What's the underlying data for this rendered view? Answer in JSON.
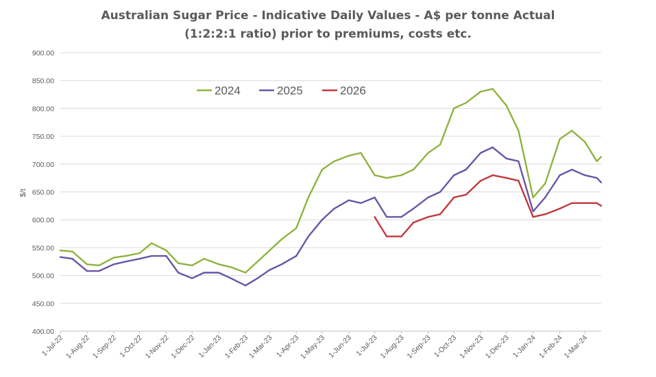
{
  "chart_data": {
    "type": "line",
    "title": "Australian Sugar Price - Indicative Daily Values - A$ per tonne Actual",
    "subtitle": "(1:2:2:1 ratio) prior to premiums, costs etc.",
    "xlabel": "",
    "ylabel": "$/t",
    "ylim": [
      400,
      900
    ],
    "yticks": [
      "400.00",
      "450.00",
      "500.00",
      "550.00",
      "600.00",
      "650.00",
      "700.00",
      "750.00",
      "800.00",
      "850.00",
      "900.00"
    ],
    "xticks": [
      "1-Jul-22",
      "1-Aug-22",
      "1-Sep-22",
      "1-Oct-22",
      "1-Nov-22",
      "1-Dec-22",
      "1-Jan-23",
      "1-Feb-23",
      "1-Mar-23",
      "1-Apr-23",
      "1-May-23",
      "1-Jun-23",
      "1-Jul-23",
      "1-Aug-23",
      "1-Sep-23",
      "1-Oct-23",
      "1-Nov-23",
      "1-Dec-23",
      "1-Jan-24",
      "1-Feb-24",
      "1-Mar-24"
    ],
    "x": [
      "1-Jul-22",
      "15-Jul-22",
      "1-Aug-22",
      "15-Aug-22",
      "1-Sep-22",
      "15-Sep-22",
      "1-Oct-22",
      "15-Oct-22",
      "1-Nov-22",
      "15-Nov-22",
      "1-Dec-22",
      "15-Dec-22",
      "1-Jan-23",
      "15-Jan-23",
      "1-Feb-23",
      "15-Feb-23",
      "1-Mar-23",
      "15-Mar-23",
      "1-Apr-23",
      "15-Apr-23",
      "1-May-23",
      "15-May-23",
      "1-Jun-23",
      "15-Jun-23",
      "1-Jul-23",
      "15-Jul-23",
      "1-Aug-23",
      "15-Aug-23",
      "1-Sep-23",
      "15-Sep-23",
      "1-Oct-23",
      "15-Oct-23",
      "1-Nov-23",
      "15-Nov-23",
      "1-Dec-23",
      "15-Dec-23",
      "1-Jan-24",
      "15-Jan-24",
      "1-Feb-24",
      "15-Feb-24",
      "1-Mar-24",
      "15-Mar-24",
      "20-Mar-24"
    ],
    "series": [
      {
        "name": "2024",
        "color": "#8db33f",
        "values": [
          545,
          543,
          520,
          518,
          532,
          535,
          540,
          558,
          545,
          522,
          518,
          530,
          520,
          515,
          505,
          525,
          545,
          565,
          585,
          640,
          690,
          705,
          715,
          720,
          680,
          675,
          680,
          690,
          720,
          735,
          800,
          810,
          830,
          835,
          805,
          760,
          640,
          665,
          745,
          760,
          740,
          705,
          713
        ]
      },
      {
        "name": "2025",
        "color": "#6655a8",
        "values": [
          533,
          530,
          508,
          508,
          520,
          525,
          530,
          535,
          535,
          505,
          495,
          505,
          505,
          495,
          482,
          495,
          510,
          520,
          535,
          570,
          600,
          620,
          635,
          630,
          640,
          605,
          605,
          620,
          640,
          650,
          680,
          690,
          720,
          730,
          710,
          705,
          615,
          640,
          680,
          690,
          680,
          675,
          667
        ]
      },
      {
        "name": "2026",
        "color": "#c0383b",
        "values": [
          null,
          null,
          null,
          null,
          null,
          null,
          null,
          null,
          null,
          null,
          null,
          null,
          null,
          null,
          null,
          null,
          null,
          null,
          null,
          null,
          null,
          null,
          null,
          null,
          605,
          570,
          570,
          595,
          605,
          610,
          640,
          645,
          670,
          680,
          675,
          670,
          605,
          610,
          620,
          630,
          630,
          630,
          625
        ]
      }
    ],
    "grid": true,
    "legend_position": "top-center"
  }
}
